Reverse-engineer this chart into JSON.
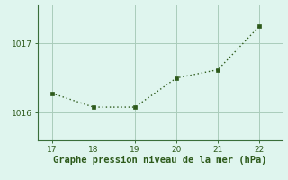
{
  "x": [
    17,
    18,
    19,
    20,
    21,
    22
  ],
  "y": [
    1016.28,
    1016.08,
    1016.08,
    1016.5,
    1016.62,
    1017.25
  ],
  "line_color": "#2d5a1b",
  "marker_color": "#2d5a1b",
  "bg_color": "#dff5ee",
  "grid_color": "#aaccbb",
  "xlabel": "Graphe pression niveau de la mer (hPa)",
  "xlabel_color": "#2d5a1b",
  "xlabel_fontsize": 7.5,
  "ytick_labels": [
    "1016",
    "1017"
  ],
  "ytick_values": [
    1016,
    1017
  ],
  "ylim": [
    1015.6,
    1017.55
  ],
  "xlim": [
    16.65,
    22.55
  ],
  "xtick_values": [
    17,
    18,
    19,
    20,
    21,
    22
  ],
  "spine_color": "#3a6e3a"
}
